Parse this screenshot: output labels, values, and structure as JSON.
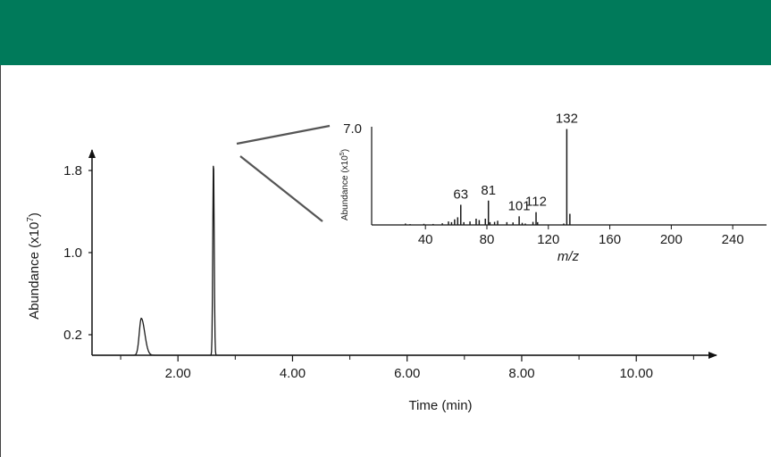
{
  "colors": {
    "header": "#007a5a",
    "axis": "#111111",
    "trace": "#1a1a1a",
    "zoom_lines": "#555555"
  },
  "chart_data": [
    {
      "type": "line",
      "title": "",
      "xlabel": "Time (min)",
      "ylabel": "Abundance (x10⁷)",
      "ylabel_main": "Abundance (x10",
      "ylabel_exp": "7",
      "ylabel_close": ")",
      "xlim": [
        0.5,
        11.4
      ],
      "ylim": [
        0.0,
        2.0
      ],
      "x_ticks": [
        2.0,
        4.0,
        6.0,
        8.0,
        10.0
      ],
      "x_tick_labels": [
        "2.00",
        "4.00",
        "6.00",
        "8.00",
        "10.00"
      ],
      "y_ticks": [
        0.2,
        1.0,
        1.8
      ],
      "y_tick_labels": [
        "0.2",
        "1.0",
        "1.8"
      ],
      "baseline": 0.0,
      "peaks": [
        {
          "rt": 1.36,
          "height": 0.36,
          "width": 0.035,
          "tail": 0.12
        },
        {
          "rt": 2.62,
          "height": 1.92,
          "width": 0.012,
          "tail": 0.025
        }
      ]
    },
    {
      "type": "bar",
      "title": "",
      "xlabel": "m/z",
      "ylabel": "Abundance (x10⁵)",
      "ylabel_main": "Abundance (x10",
      "ylabel_exp": "5",
      "ylabel_close": ")",
      "xlim": [
        5,
        262
      ],
      "ylim": [
        0.0,
        7.0
      ],
      "x_ticks": [
        40,
        80,
        120,
        160,
        200,
        240
      ],
      "x_tick_labels": [
        "40",
        "80",
        "120",
        "160",
        "200",
        "240"
      ],
      "y_tick_labels": [
        "7.0"
      ],
      "peaks": [
        {
          "mz": 27,
          "value": 0.1
        },
        {
          "mz": 30,
          "value": 0.06
        },
        {
          "mz": 39,
          "value": 0.08
        },
        {
          "mz": 45,
          "value": 0.07
        },
        {
          "mz": 51,
          "value": 0.12
        },
        {
          "mz": 55,
          "value": 0.25
        },
        {
          "mz": 57,
          "value": 0.2
        },
        {
          "mz": 59,
          "value": 0.4
        },
        {
          "mz": 61,
          "value": 0.55
        },
        {
          "mz": 63,
          "value": 1.45
        },
        {
          "mz": 65,
          "value": 0.2
        },
        {
          "mz": 69,
          "value": 0.25
        },
        {
          "mz": 73,
          "value": 0.45
        },
        {
          "mz": 75,
          "value": 0.35
        },
        {
          "mz": 79,
          "value": 0.45
        },
        {
          "mz": 81,
          "value": 1.75
        },
        {
          "mz": 82,
          "value": 0.2
        },
        {
          "mz": 85,
          "value": 0.22
        },
        {
          "mz": 87,
          "value": 0.3
        },
        {
          "mz": 93,
          "value": 0.2
        },
        {
          "mz": 97,
          "value": 0.18
        },
        {
          "mz": 101,
          "value": 0.62
        },
        {
          "mz": 103,
          "value": 0.15
        },
        {
          "mz": 105,
          "value": 0.1
        },
        {
          "mz": 110,
          "value": 0.22
        },
        {
          "mz": 112,
          "value": 0.92
        },
        {
          "mz": 113,
          "value": 0.2
        },
        {
          "mz": 130,
          "value": 0.1
        },
        {
          "mz": 132,
          "value": 6.9
        },
        {
          "mz": 134,
          "value": 0.8
        }
      ],
      "labels": [
        {
          "mz": 63,
          "text": "63"
        },
        {
          "mz": 81,
          "text": "81"
        },
        {
          "mz": 101,
          "text": "101"
        },
        {
          "mz": 112,
          "text": "112"
        },
        {
          "mz": 132,
          "text": "132"
        }
      ]
    }
  ]
}
